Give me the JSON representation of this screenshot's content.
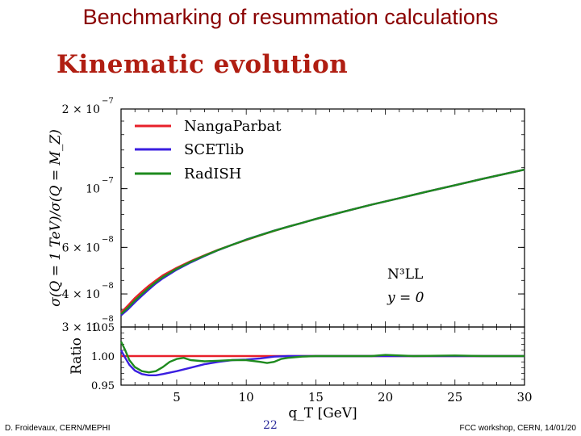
{
  "slide": {
    "title": "Benchmarking of resummation calculations",
    "subtitle": "Kinematic evolution",
    "footer_left": "D. Froidevaux, CERN/MEPHI",
    "footer_right": "FCC workshop, CERN, 14/01/20",
    "page_number": "22"
  },
  "colors": {
    "title": "#8a0000",
    "subtitle": "#b01e12",
    "NangaParbat": "#e8202a",
    "SCETlib": "#3a1ee0",
    "RadISH": "#1e8a1e"
  },
  "chart_data": {
    "type": "line",
    "xlabel": "q_T [GeV]",
    "x_ticks": [
      5,
      10,
      15,
      20,
      25,
      30
    ],
    "xlim": [
      1,
      30
    ],
    "top": {
      "ylabel": "σ(Q = 1 TeV)/σ(Q = M_Z)",
      "yscale": "log",
      "ylim": [
        3e-08,
        2e-07
      ],
      "y_ticks": [
        {
          "value": 2e-07,
          "mantissa": "2 × 10",
          "exp": "−7"
        },
        {
          "value": 1e-07,
          "mantissa": "10",
          "exp": "−7"
        },
        {
          "value": 6e-08,
          "mantissa": "6 × 10",
          "exp": "−8"
        },
        {
          "value": 4e-08,
          "mantissa": "4 × 10",
          "exp": "−8"
        },
        {
          "value": 3e-08,
          "mantissa": "3 × 10",
          "exp": "−8"
        }
      ],
      "annotation_order": "N³LL",
      "annotation_rapidity": "y = 0",
      "series": [
        {
          "name": "NangaParbat",
          "x": [
            1,
            1.5,
            2,
            2.5,
            3,
            3.5,
            4,
            5,
            6,
            7,
            8,
            9,
            10,
            11,
            12,
            13,
            14,
            15,
            17,
            19,
            21,
            23,
            25,
            27,
            30
          ],
          "y": [
            3.4e-08,
            3.62e-08,
            3.86e-08,
            4.08e-08,
            4.3e-08,
            4.5e-08,
            4.7e-08,
            5.02e-08,
            5.32e-08,
            5.6e-08,
            5.88e-08,
            6.14e-08,
            6.4e-08,
            6.66e-08,
            6.92e-08,
            7.18e-08,
            7.42e-08,
            7.68e-08,
            8.18e-08,
            8.7e-08,
            9.2e-08,
            9.75e-08,
            1.03e-07,
            1.09e-07,
            1.18e-07
          ]
        },
        {
          "name": "SCETlib",
          "x": [
            1,
            1.5,
            2,
            2.5,
            3,
            3.5,
            4,
            5,
            6,
            7,
            8,
            9,
            10,
            11,
            12,
            13,
            14,
            15,
            17,
            19,
            21,
            23,
            25,
            27,
            30
          ],
          "y": [
            3.32e-08,
            3.5e-08,
            3.72e-08,
            3.94e-08,
            4.16e-08,
            4.38e-08,
            4.58e-08,
            4.94e-08,
            5.26e-08,
            5.56e-08,
            5.86e-08,
            6.14e-08,
            6.42e-08,
            6.68e-08,
            6.94e-08,
            7.18e-08,
            7.42e-08,
            7.68e-08,
            8.18e-08,
            8.7e-08,
            9.2e-08,
            9.75e-08,
            1.03e-07,
            1.09e-07,
            1.18e-07
          ]
        },
        {
          "name": "RadISH",
          "x": [
            1,
            1.5,
            2,
            2.5,
            3,
            3.5,
            4,
            5,
            6,
            7,
            8,
            9,
            10,
            11,
            12,
            13,
            14,
            15,
            17,
            19,
            21,
            23,
            25,
            27,
            30
          ],
          "y": [
            3.36e-08,
            3.55e-08,
            3.78e-08,
            4e-08,
            4.22e-08,
            4.43e-08,
            4.63e-08,
            4.98e-08,
            5.29e-08,
            5.58e-08,
            5.87e-08,
            6.14e-08,
            6.41e-08,
            6.67e-08,
            6.93e-08,
            7.18e-08,
            7.42e-08,
            7.68e-08,
            8.18e-08,
            8.7e-08,
            9.2e-08,
            9.75e-08,
            1.03e-07,
            1.09e-07,
            1.18e-07
          ]
        }
      ]
    },
    "bottom": {
      "ylabel": "Ratio",
      "ylim": [
        0.95,
        1.05
      ],
      "y_ticks": [
        "1.05",
        "1.00",
        "0.95"
      ],
      "y_tick_values": [
        1.05,
        1.0,
        0.95
      ],
      "reference_line": 1.0,
      "series": [
        {
          "name": "NangaParbat",
          "x": [
            1,
            30
          ],
          "y": [
            1.0,
            1.0
          ]
        },
        {
          "name": "SCETlib",
          "x": [
            1,
            1.3,
            1.6,
            2,
            2.5,
            3,
            3.5,
            4,
            5,
            6,
            7,
            8,
            9,
            10,
            11,
            12,
            13,
            14,
            15,
            17,
            20,
            23,
            26,
            30
          ],
          "y": [
            1.01,
            0.997,
            0.985,
            0.975,
            0.969,
            0.967,
            0.967,
            0.969,
            0.974,
            0.98,
            0.986,
            0.99,
            0.993,
            0.994,
            0.996,
            0.999,
            1.0,
            1.0,
            1.0,
            1.0,
            1.0,
            1.0,
            1.0,
            1.0
          ]
        },
        {
          "name": "RadISH",
          "x": [
            1,
            1.3,
            1.6,
            2,
            2.5,
            3,
            3.5,
            4,
            4.5,
            5,
            5.5,
            6,
            7,
            8,
            9,
            10,
            11,
            11.5,
            12,
            12.5,
            13,
            14,
            15,
            17,
            19,
            20,
            22,
            25,
            27,
            30
          ],
          "y": [
            1.025,
            1.01,
            0.993,
            0.981,
            0.974,
            0.972,
            0.974,
            0.981,
            0.99,
            0.995,
            0.997,
            0.993,
            0.991,
            0.992,
            0.993,
            0.993,
            0.99,
            0.988,
            0.99,
            0.995,
            0.997,
            0.999,
            1.0,
            1.0,
            1.0,
            1.002,
            1.0,
            1.001,
            1.0,
            1.0
          ]
        }
      ]
    }
  }
}
